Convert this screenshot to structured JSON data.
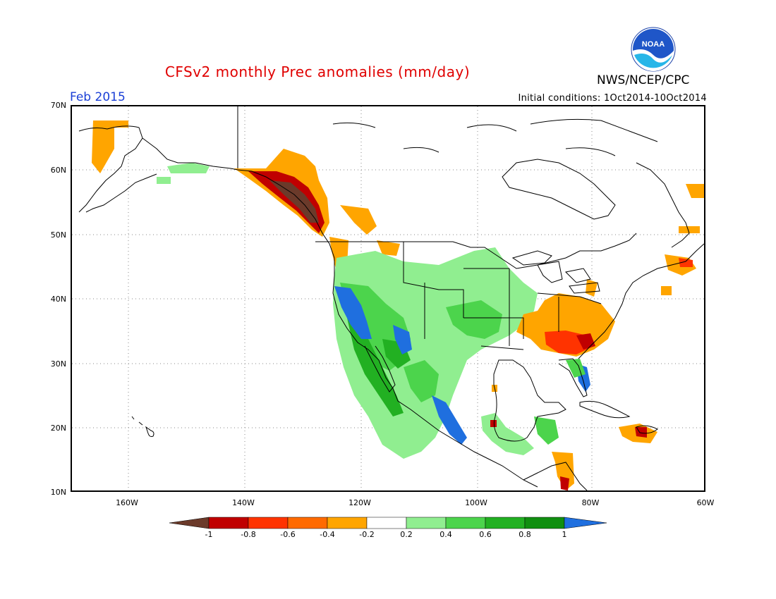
{
  "title": "CFSv2 monthly Prec anomalies (mm/day)",
  "organization": "NWS/NCEP/CPC",
  "logo_text": "NOAA",
  "month": "Feb 2015",
  "initial_conditions": "Initial conditions: 1Oct2014-10Oct2014",
  "lat_labels": [
    "70N",
    "60N",
    "50N",
    "40N",
    "30N",
    "20N",
    "10N"
  ],
  "lon_labels": [
    "160W",
    "140W",
    "120W",
    "100W",
    "80W",
    "60W"
  ],
  "colorbar": {
    "labels": [
      "-1",
      "-0.8",
      "-0.6",
      "-0.4",
      "-0.2",
      "0.2",
      "0.4",
      "0.6",
      "0.8",
      "1"
    ],
    "colors": [
      "#6b3a2a",
      "#c00000",
      "#ff3300",
      "#ff6a00",
      "#ffa500",
      "#ffffff",
      "#90ee90",
      "#4cd44c",
      "#22b022",
      "#108f10",
      "#1f6fdf"
    ]
  },
  "anomaly_colors": {
    "very_dry": "#6b3a2a",
    "dry_strong": "#c00000",
    "dry_moderate": "#ff3300",
    "dry_light": "#ffa500",
    "wet_light": "#90ee90",
    "wet_moderate": "#4cd44c",
    "wet_strong": "#22b022",
    "very_wet": "#1f6fdf"
  }
}
